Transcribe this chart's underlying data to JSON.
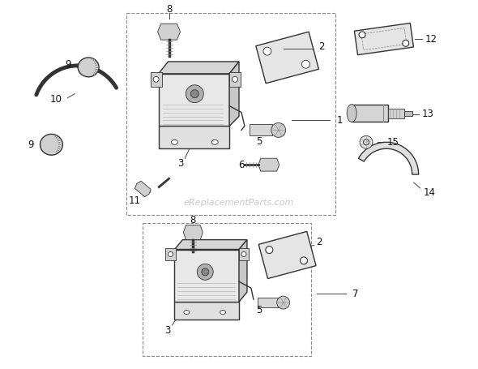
{
  "bg_color": "#ffffff",
  "line_color": "#333333",
  "label_color": "#111111",
  "watermark_color": "#c8c8c8",
  "watermark_text": "eReplacementParts.com",
  "fig_width": 5.9,
  "fig_height": 4.55,
  "dpi": 100
}
